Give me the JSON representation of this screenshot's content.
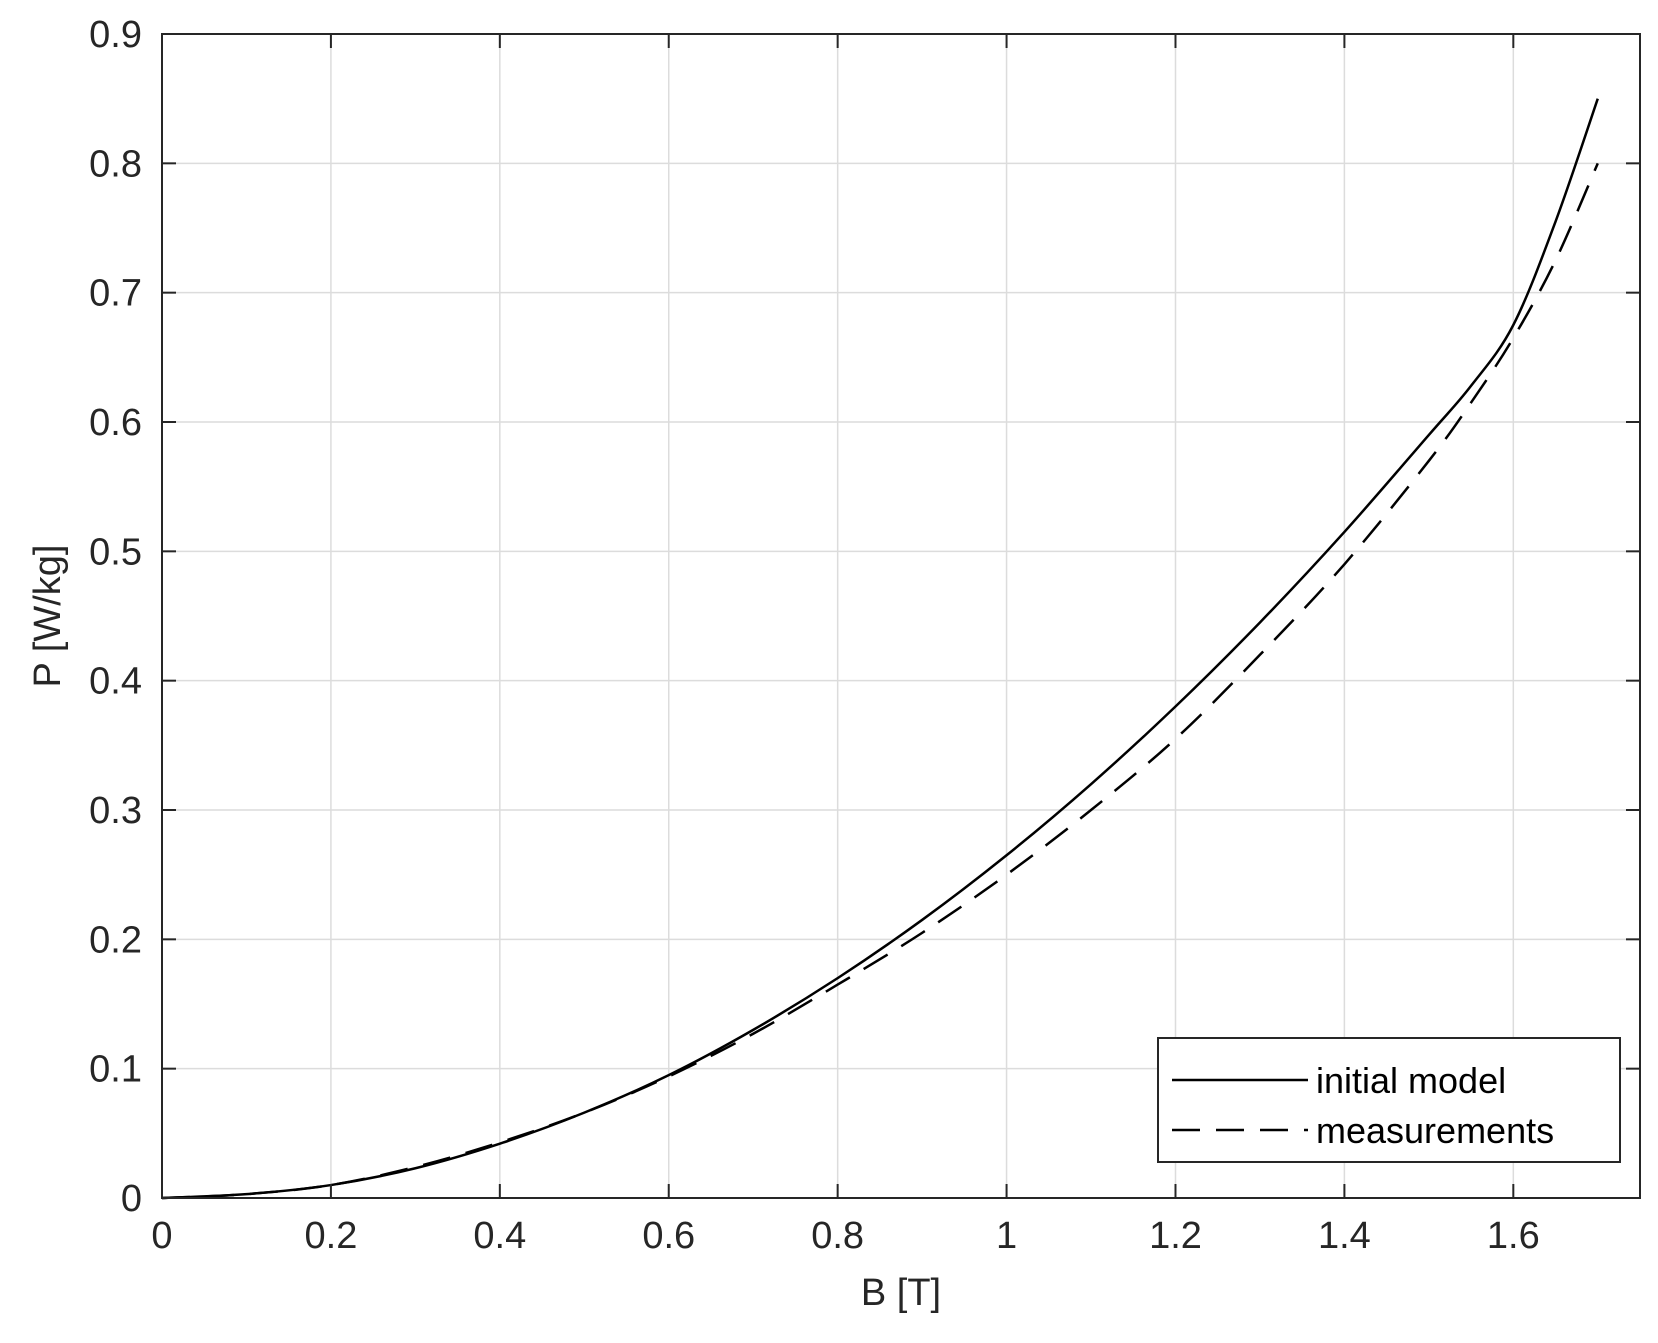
{
  "chart_data": {
    "type": "line",
    "xlabel": "B [T]",
    "ylabel": "P [W/kg]",
    "xlim": [
      0,
      1.75
    ],
    "ylim": [
      0,
      0.9
    ],
    "xticks": [
      0,
      0.2,
      0.4,
      0.6,
      0.8,
      1,
      1.2,
      1.4,
      1.6
    ],
    "xtick_labels": [
      "0",
      "0.2",
      "0.4",
      "0.6",
      "0.8",
      "1",
      "1.2",
      "1.4",
      "1.6"
    ],
    "yticks": [
      0,
      0.1,
      0.2,
      0.3,
      0.4,
      0.5,
      0.6,
      0.7,
      0.8,
      0.9
    ],
    "ytick_labels": [
      "0",
      "0.1",
      "0.2",
      "0.3",
      "0.4",
      "0.5",
      "0.6",
      "0.7",
      "0.8",
      "0.9"
    ],
    "grid": true,
    "legend_position": "bottom-right",
    "series": [
      {
        "name": "initial model",
        "style": "solid",
        "color": "#000000",
        "x": [
          0,
          0.1,
          0.2,
          0.3,
          0.4,
          0.5,
          0.6,
          0.7,
          0.8,
          0.9,
          1.0,
          1.1,
          1.2,
          1.3,
          1.4,
          1.5,
          1.55,
          1.6,
          1.65,
          1.7
        ],
        "y": [
          0,
          0.003,
          0.01,
          0.023,
          0.042,
          0.066,
          0.095,
          0.13,
          0.17,
          0.215,
          0.265,
          0.32,
          0.38,
          0.445,
          0.515,
          0.59,
          0.628,
          0.675,
          0.755,
          0.85
        ]
      },
      {
        "name": "measurements",
        "style": "dashed",
        "color": "#000000",
        "x": [
          0,
          0.1,
          0.2,
          0.3,
          0.4,
          0.5,
          0.6,
          0.7,
          0.8,
          0.9,
          1.0,
          1.1,
          1.2,
          1.3,
          1.4,
          1.5,
          1.55,
          1.6,
          1.65,
          1.7
        ],
        "y": [
          0,
          0.003,
          0.01,
          0.024,
          0.043,
          0.066,
          0.094,
          0.127,
          0.165,
          0.205,
          0.25,
          0.3,
          0.355,
          0.42,
          0.49,
          0.57,
          0.615,
          0.665,
          0.725,
          0.8
        ]
      }
    ]
  }
}
